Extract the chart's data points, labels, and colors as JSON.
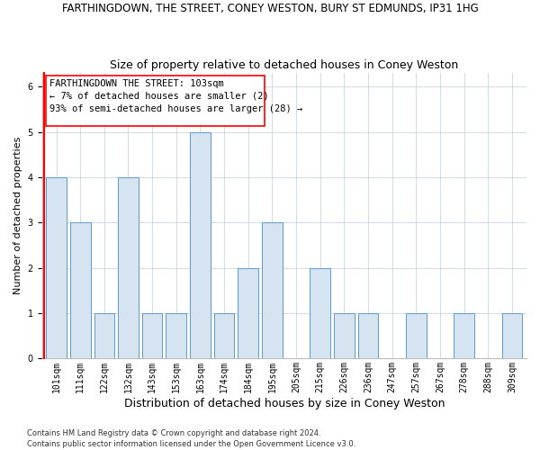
{
  "title": "FARTHINGDOWN, THE STREET, CONEY WESTON, BURY ST EDMUNDS, IP31 1HG",
  "subtitle": "Size of property relative to detached houses in Coney Weston",
  "xlabel": "Distribution of detached houses by size in Coney Weston",
  "ylabel": "Number of detached properties",
  "categories": [
    "101sqm",
    "111sqm",
    "122sqm",
    "132sqm",
    "143sqm",
    "153sqm",
    "163sqm",
    "174sqm",
    "184sqm",
    "195sqm",
    "205sqm",
    "215sqm",
    "226sqm",
    "236sqm",
    "247sqm",
    "257sqm",
    "267sqm",
    "278sqm",
    "288sqm",
    "309sqm"
  ],
  "values": [
    4,
    3,
    1,
    4,
    1,
    1,
    5,
    1,
    2,
    3,
    0,
    2,
    1,
    1,
    0,
    1,
    0,
    1,
    0,
    1
  ],
  "bar_color": "#d6e4f2",
  "bar_edge_color": "#5b9bd5",
  "annotation_line1": "FARTHINGDOWN THE STREET: 103sqm",
  "annotation_line2": "← 7% of detached houses are smaller (2)",
  "annotation_line3": "93% of semi-detached houses are larger (28) →",
  "ylim": [
    0,
    6.3
  ],
  "grid_color": "#c8d4e3",
  "footer_text": "Contains HM Land Registry data © Crown copyright and database right 2024.\nContains public sector information licensed under the Open Government Licence v3.0.",
  "title_fontsize": 8.5,
  "subtitle_fontsize": 9,
  "xlabel_fontsize": 9,
  "ylabel_fontsize": 8,
  "tick_fontsize": 7,
  "annotation_fontsize": 7.5,
  "footer_fontsize": 6
}
